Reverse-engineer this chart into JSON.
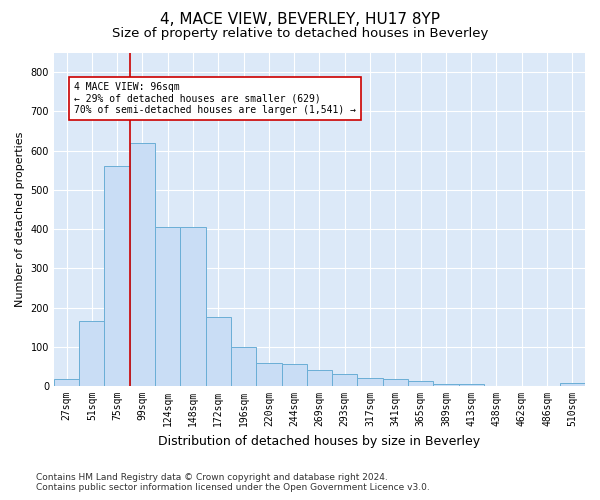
{
  "title": "4, MACE VIEW, BEVERLEY, HU17 8YP",
  "subtitle": "Size of property relative to detached houses in Beverley",
  "xlabel": "Distribution of detached houses by size in Beverley",
  "ylabel": "Number of detached properties",
  "categories": [
    "27sqm",
    "51sqm",
    "75sqm",
    "99sqm",
    "124sqm",
    "148sqm",
    "172sqm",
    "196sqm",
    "220sqm",
    "244sqm",
    "269sqm",
    "293sqm",
    "317sqm",
    "341sqm",
    "365sqm",
    "389sqm",
    "413sqm",
    "438sqm",
    "462sqm",
    "486sqm",
    "510sqm"
  ],
  "bar_heights": [
    18,
    165,
    560,
    620,
    405,
    405,
    175,
    100,
    60,
    55,
    40,
    30,
    20,
    18,
    14,
    5,
    5,
    0,
    0,
    0,
    8
  ],
  "bar_color": "#c9ddf5",
  "bar_edge_color": "#6aaed6",
  "vline_x_idx": 3,
  "vline_color": "#cc0000",
  "annotation_text": "4 MACE VIEW: 96sqm\n← 29% of detached houses are smaller (629)\n70% of semi-detached houses are larger (1,541) →",
  "annotation_box_color": "#ffffff",
  "annotation_box_edge": "#cc0000",
  "ylim": [
    0,
    850
  ],
  "yticks": [
    0,
    100,
    200,
    300,
    400,
    500,
    600,
    700,
    800
  ],
  "footer": "Contains HM Land Registry data © Crown copyright and database right 2024.\nContains public sector information licensed under the Open Government Licence v3.0.",
  "bg_color": "#dce9f8",
  "fig_bg_color": "#ffffff",
  "grid_color": "#ffffff",
  "title_fontsize": 11,
  "subtitle_fontsize": 9.5,
  "xlabel_fontsize": 9,
  "ylabel_fontsize": 8,
  "tick_fontsize": 7,
  "footer_fontsize": 6.5
}
